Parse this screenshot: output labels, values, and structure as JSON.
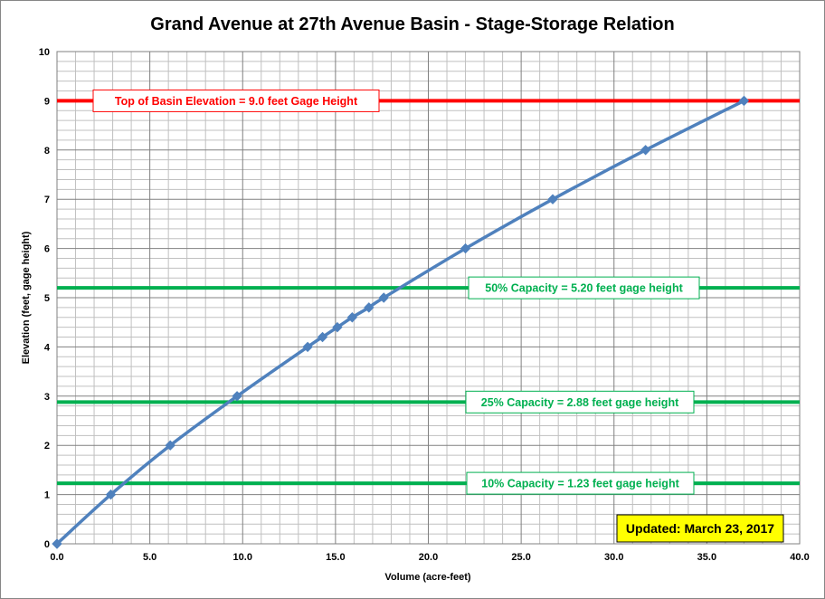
{
  "chart_data": {
    "type": "line",
    "title": "Grand Avenue at 27th Avenue Basin - Stage-Storage Relation",
    "xlabel": "Volume (acre-feet)",
    "ylabel": "Elevation (feet, gage height)",
    "xlim": [
      0,
      40
    ],
    "ylim": [
      0,
      10
    ],
    "x_ticks": [
      "0.0",
      "5.0",
      "10.0",
      "15.0",
      "20.0",
      "25.0",
      "30.0",
      "35.0",
      "40.0"
    ],
    "y_ticks": [
      "0",
      "1",
      "2",
      "3",
      "4",
      "5",
      "6",
      "7",
      "8",
      "9",
      "10"
    ],
    "grid": true,
    "series": [
      {
        "color": "#4F81BD",
        "marker": "diamond",
        "x": [
          0,
          2.9,
          6.1,
          9.7,
          13.5,
          14.3,
          15.1,
          15.9,
          16.8,
          17.6,
          22.0,
          26.7,
          31.7,
          37.0
        ],
        "y": [
          0,
          1,
          2,
          3,
          4,
          4.2,
          4.4,
          4.6,
          4.8,
          5,
          6,
          7,
          8,
          9
        ]
      }
    ],
    "reference_lines": [
      {
        "y": 9.0,
        "color": "#FF0000",
        "label": "Top of Basin Elevation = 9.0 feet Gage Height",
        "label_color": "#FF0000"
      },
      {
        "y": 5.2,
        "color": "#00B050",
        "label": "50% Capacity = 5.20 feet gage height",
        "label_color": "#00B050"
      },
      {
        "y": 2.88,
        "color": "#00B050",
        "label": "25% Capacity = 2.88 feet gage height",
        "label_color": "#00B050"
      },
      {
        "y": 1.23,
        "color": "#00B050",
        "label": "10% Capacity = 1.23 feet gage height",
        "label_color": "#00B050"
      }
    ],
    "annotations": [
      {
        "text": "Updated: March 23, 2017",
        "background": "#FFFF00",
        "placement": "bottom-right"
      }
    ]
  }
}
